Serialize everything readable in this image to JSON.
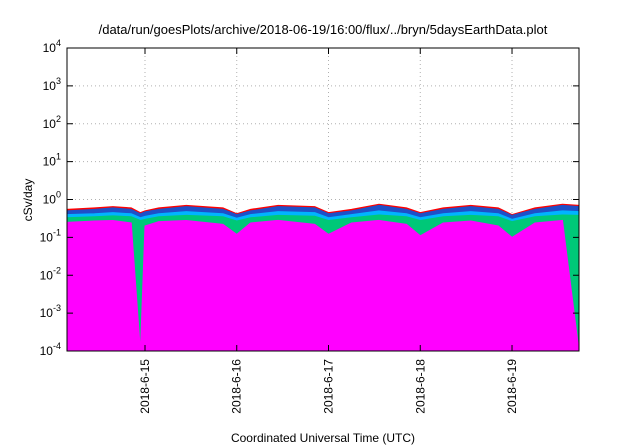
{
  "chart_data": {
    "type": "area",
    "title": "/data/run/goesPlots/archive/2018-06-19/16:00/flux/../bryn/5daysEarthData.plot",
    "xlabel": "Coordinated Universal Time (UTC)",
    "ylabel": "cSv/day",
    "yscale": "log",
    "ylim": [
      0.0001,
      10000
    ],
    "xlim": [
      0,
      5.58
    ],
    "grid": true,
    "y_ticks": [
      {
        "value": 0.0001,
        "base": "10",
        "exp": "-4"
      },
      {
        "value": 0.001,
        "base": "10",
        "exp": "-3"
      },
      {
        "value": 0.01,
        "base": "10",
        "exp": "-2"
      },
      {
        "value": 0.1,
        "base": "10",
        "exp": "-1"
      },
      {
        "value": 1,
        "base": "10",
        "exp": "0"
      },
      {
        "value": 10,
        "base": "10",
        "exp": "1"
      },
      {
        "value": 100,
        "base": "10",
        "exp": "2"
      },
      {
        "value": 1000,
        "base": "10",
        "exp": "3"
      },
      {
        "value": 10000,
        "base": "10",
        "exp": "4"
      }
    ],
    "x_ticks": [
      {
        "value": 0.85,
        "label": "2018-6-15"
      },
      {
        "value": 1.85,
        "label": "2018-6-16"
      },
      {
        "value": 2.85,
        "label": "2018-6-17"
      },
      {
        "value": 3.85,
        "label": "2018-6-18"
      },
      {
        "value": 4.85,
        "label": "2018-6-19"
      }
    ],
    "x": [
      0,
      0.3,
      0.5,
      0.7,
      0.8,
      0.85,
      1.0,
      1.3,
      1.7,
      1.85,
      2.0,
      2.3,
      2.7,
      2.85,
      3.1,
      3.4,
      3.7,
      3.85,
      4.1,
      4.4,
      4.7,
      4.85,
      5.1,
      5.4,
      5.58
    ],
    "series": [
      {
        "color": "#ff0000",
        "values": [
          0.55,
          0.6,
          0.65,
          0.6,
          0.45,
          0.5,
          0.6,
          0.7,
          0.6,
          0.42,
          0.55,
          0.7,
          0.65,
          0.45,
          0.55,
          0.75,
          0.6,
          0.45,
          0.6,
          0.7,
          0.6,
          0.4,
          0.6,
          0.75,
          0.7
        ]
      },
      {
        "color": "#1e50c8",
        "values": [
          0.5,
          0.55,
          0.6,
          0.55,
          0.42,
          0.47,
          0.55,
          0.65,
          0.55,
          0.4,
          0.5,
          0.65,
          0.6,
          0.42,
          0.5,
          0.7,
          0.55,
          0.42,
          0.55,
          0.65,
          0.55,
          0.38,
          0.55,
          0.7,
          0.65
        ]
      },
      {
        "color": "#00b4ff",
        "values": [
          0.4,
          0.42,
          0.45,
          0.42,
          0.33,
          0.36,
          0.42,
          0.48,
          0.42,
          0.32,
          0.4,
          0.48,
          0.45,
          0.33,
          0.4,
          0.5,
          0.42,
          0.33,
          0.42,
          0.48,
          0.42,
          0.3,
          0.42,
          0.5,
          0.48
        ]
      },
      {
        "color": "#00c878",
        "values": [
          0.33,
          0.35,
          0.37,
          0.35,
          0.28,
          0.3,
          0.35,
          0.38,
          0.35,
          0.27,
          0.33,
          0.38,
          0.36,
          0.28,
          0.33,
          0.39,
          0.35,
          0.28,
          0.35,
          0.38,
          0.35,
          0.26,
          0.35,
          0.39,
          0.38
        ]
      },
      {
        "color": "#ff00ff",
        "values": [
          0.25,
          0.27,
          0.28,
          0.24,
          0.0001,
          0.2,
          0.26,
          0.28,
          0.22,
          0.12,
          0.24,
          0.28,
          0.22,
          0.12,
          0.24,
          0.28,
          0.22,
          0.11,
          0.24,
          0.27,
          0.2,
          0.1,
          0.24,
          0.28,
          0.0001
        ]
      }
    ]
  }
}
